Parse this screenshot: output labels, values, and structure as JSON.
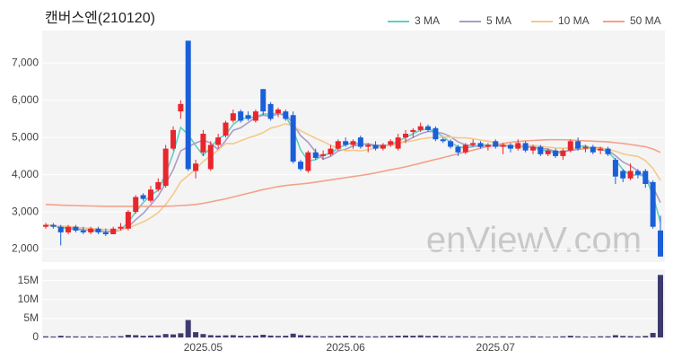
{
  "chart_data": [
    {
      "type": "candlestick",
      "title": "캔버스엔(210120)",
      "watermark": "enViewV.com",
      "up_color": "#e8262d",
      "down_color": "#1a5fd8",
      "open": [
        2600,
        2650,
        2600,
        2450,
        2600,
        2500,
        2450,
        2550,
        2450,
        2400,
        2550,
        2550,
        3000,
        3450,
        3300,
        3600,
        3700,
        4700,
        5700,
        7600,
        4100,
        4600,
        4150,
        4800,
        5050,
        5450,
        5700,
        5600,
        5450,
        6300,
        5900,
        5650,
        5700,
        5600,
        4350,
        4100,
        4600,
        4500,
        4550,
        4700,
        4900,
        4800,
        5000,
        4750,
        4800,
        4700,
        4800,
        4700,
        5000,
        5150,
        5200,
        5300,
        5250,
        4950,
        4900,
        4750,
        4600,
        4800,
        4850,
        4750,
        4900,
        4750,
        4800,
        4700,
        4850,
        4650,
        4750,
        4550,
        4650,
        4500,
        4650,
        4900,
        4700,
        4750,
        4650,
        4700,
        4400,
        4100,
        3900,
        4100,
        4100,
        3800,
        2500
      ],
      "high": [
        2700,
        2700,
        2650,
        2650,
        2650,
        2600,
        2600,
        2600,
        2550,
        2600,
        2700,
        3050,
        3450,
        3500,
        3700,
        3900,
        4800,
        5300,
        6000,
        7600,
        4400,
        5200,
        4900,
        5100,
        5450,
        5750,
        5750,
        5700,
        5750,
        6300,
        5950,
        5800,
        5750,
        5700,
        4400,
        4650,
        4700,
        4650,
        4800,
        4950,
        5000,
        4950,
        5050,
        4850,
        4900,
        4850,
        4950,
        5100,
        5200,
        5250,
        5400,
        5350,
        5300,
        5000,
        4950,
        4800,
        4850,
        4950,
        4900,
        4850,
        4950,
        4850,
        4850,
        4950,
        4900,
        4800,
        4800,
        4700,
        4700,
        4700,
        4950,
        5000,
        4800,
        4800,
        4750,
        4750,
        4450,
        4150,
        4300,
        4150,
        4150,
        3850,
        2900
      ],
      "low": [
        2550,
        2550,
        2100,
        2400,
        2450,
        2400,
        2400,
        2400,
        2350,
        2400,
        2500,
        2500,
        2950,
        3300,
        3250,
        3550,
        3650,
        4650,
        5500,
        4100,
        3900,
        4500,
        4100,
        4700,
        5000,
        5400,
        5400,
        5450,
        5400,
        5600,
        5450,
        5550,
        5450,
        4300,
        4100,
        4050,
        4400,
        4400,
        4500,
        4650,
        4750,
        4700,
        4700,
        4600,
        4650,
        4650,
        4750,
        4650,
        4850,
        5000,
        5150,
        5150,
        4900,
        4850,
        4700,
        4500,
        4550,
        4750,
        4700,
        4650,
        4700,
        4550,
        4600,
        4650,
        4600,
        4550,
        4500,
        4500,
        4450,
        4400,
        4600,
        4650,
        4600,
        4550,
        4550,
        4500,
        3750,
        3800,
        3850,
        3900,
        3650,
        2550,
        1800
      ],
      "close": [
        2650,
        2600,
        2450,
        2600,
        2500,
        2450,
        2550,
        2450,
        2400,
        2550,
        2600,
        3000,
        3400,
        3350,
        3600,
        3800,
        4700,
        5200,
        5900,
        4150,
        4300,
        5100,
        4800,
        5000,
        5400,
        5650,
        5450,
        5500,
        5700,
        5700,
        5500,
        5750,
        5500,
        4350,
        4150,
        4600,
        4450,
        4550,
        4700,
        4900,
        4800,
        4900,
        4750,
        4800,
        4700,
        4800,
        4900,
        5000,
        5100,
        5200,
        5300,
        5200,
        4950,
        4900,
        4750,
        4600,
        4800,
        4850,
        4750,
        4800,
        4750,
        4800,
        4700,
        4850,
        4650,
        4750,
        4550,
        4650,
        4500,
        4650,
        4900,
        4700,
        4750,
        4600,
        4700,
        4550,
        3950,
        3900,
        4100,
        4000,
        3750,
        2600,
        1800
      ],
      "series": [
        {
          "name": "3 MA",
          "color": "#5fcfc5",
          "values": [
            2650,
            2630,
            2570,
            2550,
            2520,
            2520,
            2500,
            2480,
            2470,
            2470,
            2520,
            2720,
            3000,
            3250,
            3450,
            3580,
            4030,
            4570,
            5270,
            5080,
            4780,
            4520,
            4730,
            4970,
            5070,
            5350,
            5500,
            5530,
            5550,
            5630,
            5630,
            5650,
            5580,
            5200,
            4670,
            4370,
            4400,
            4530,
            4570,
            4720,
            4800,
            4870,
            4820,
            4820,
            4750,
            4770,
            4800,
            4900,
            5000,
            5100,
            5200,
            5230,
            5150,
            5020,
            4870,
            4750,
            4720,
            4750,
            4800,
            4800,
            4770,
            4780,
            4750,
            4780,
            4730,
            4750,
            4650,
            4650,
            4570,
            4600,
            4680,
            4750,
            4780,
            4680,
            4680,
            4620,
            4400,
            4130,
            3980,
            4000,
            3950,
            3450,
            2720
          ]
        },
        {
          "name": "5 MA",
          "color": "#a99cc8",
          "values": [
            2650,
            2640,
            2600,
            2580,
            2560,
            2520,
            2510,
            2510,
            2470,
            2480,
            2510,
            2600,
            2790,
            2960,
            3190,
            3430,
            3770,
            4130,
            4640,
            4750,
            4850,
            4930,
            4850,
            4670,
            4920,
            5190,
            5260,
            5400,
            5540,
            5600,
            5570,
            5630,
            5630,
            5360,
            5050,
            4870,
            4610,
            4420,
            4490,
            4640,
            4680,
            4770,
            4810,
            4830,
            4790,
            4790,
            4790,
            4840,
            4900,
            5000,
            5100,
            5160,
            5150,
            5110,
            5020,
            4880,
            4800,
            4780,
            4750,
            4760,
            4790,
            4790,
            4760,
            4780,
            4750,
            4750,
            4700,
            4690,
            4620,
            4620,
            4650,
            4680,
            4700,
            4720,
            4730,
            4660,
            4510,
            4340,
            4240,
            4100,
            3940,
            3670,
            3250
          ]
        },
        {
          "name": "10 MA",
          "color": "#f5c98a",
          "values": [
            2650,
            2640,
            2620,
            2610,
            2590,
            2570,
            2560,
            2540,
            2530,
            2520,
            2520,
            2560,
            2650,
            2730,
            2840,
            2980,
            3200,
            3470,
            3810,
            3980,
            4150,
            4360,
            4500,
            4660,
            4840,
            4830,
            4910,
            4990,
            5050,
            5130,
            5250,
            5300,
            5370,
            5300,
            5180,
            5080,
            4980,
            4890,
            4790,
            4710,
            4640,
            4660,
            4640,
            4670,
            4720,
            4750,
            4790,
            4840,
            4880,
            4910,
            4960,
            4990,
            5000,
            5010,
            5010,
            4990,
            4990,
            4970,
            4930,
            4900,
            4850,
            4810,
            4790,
            4780,
            4780,
            4790,
            4760,
            4740,
            4720,
            4710,
            4720,
            4710,
            4710,
            4690,
            4700,
            4680,
            4630,
            4560,
            4520,
            4490,
            4380,
            4170,
            3850
          ]
        },
        {
          "name": "50 MA",
          "color": "#f4a18a",
          "values": [
            3200,
            3190,
            3180,
            3175,
            3170,
            3165,
            3160,
            3155,
            3150,
            3150,
            3150,
            3150,
            3150,
            3150,
            3150,
            3150,
            3155,
            3160,
            3170,
            3180,
            3200,
            3230,
            3270,
            3310,
            3350,
            3400,
            3450,
            3500,
            3550,
            3600,
            3640,
            3680,
            3710,
            3730,
            3750,
            3770,
            3800,
            3830,
            3860,
            3890,
            3920,
            3950,
            3980,
            4010,
            4050,
            4090,
            4130,
            4170,
            4210,
            4260,
            4310,
            4360,
            4410,
            4460,
            4510,
            4560,
            4610,
            4660,
            4710,
            4760,
            4800,
            4840,
            4870,
            4890,
            4910,
            4920,
            4930,
            4940,
            4940,
            4940,
            4930,
            4920,
            4910,
            4900,
            4890,
            4880,
            4860,
            4840,
            4810,
            4780,
            4750,
            4690,
            4600
          ]
        }
      ],
      "ylim": [
        1700,
        7850
      ],
      "yticks": [
        {
          "value": 2000,
          "label": "2,000"
        },
        {
          "value": 3000,
          "label": "3,000"
        },
        {
          "value": 4000,
          "label": "4,000"
        },
        {
          "value": 5000,
          "label": "5,000"
        },
        {
          "value": 6000,
          "label": "6,000"
        },
        {
          "value": 7000,
          "label": "7,000"
        }
      ],
      "grid": true
    },
    {
      "type": "bar",
      "color": "#3d3b6e",
      "categories": [
        null,
        null,
        null,
        null,
        null,
        null,
        null,
        null,
        null,
        null,
        null,
        null,
        null,
        null,
        null,
        null,
        null,
        null,
        null,
        null,
        null,
        "2025.05",
        null,
        null,
        null,
        null,
        null,
        null,
        null,
        null,
        null,
        null,
        null,
        null,
        null,
        null,
        null,
        null,
        null,
        null,
        "2025.06",
        null,
        null,
        null,
        null,
        null,
        null,
        null,
        null,
        null,
        null,
        null,
        null,
        null,
        null,
        null,
        null,
        null,
        null,
        null,
        "2025.07",
        null,
        null,
        null,
        null,
        null,
        null,
        null,
        null,
        null,
        null,
        null,
        null,
        null,
        null,
        null,
        null,
        null,
        null,
        null,
        null,
        null,
        null
      ],
      "values": [
        300000,
        250000,
        450000,
        300000,
        280000,
        250000,
        300000,
        220000,
        250000,
        300000,
        350000,
        700000,
        600000,
        450000,
        500000,
        550000,
        900000,
        800000,
        1100000,
        4600000,
        1400000,
        900000,
        600000,
        500000,
        550000,
        600000,
        450000,
        400000,
        500000,
        700000,
        500000,
        400000,
        450000,
        1000000,
        600000,
        500000,
        350000,
        300000,
        350000,
        400000,
        450000,
        400000,
        350000,
        300000,
        300000,
        350000,
        400000,
        450000,
        500000,
        450000,
        550000,
        400000,
        450000,
        350000,
        300000,
        350000,
        300000,
        300000,
        250000,
        300000,
        250000,
        300000,
        250000,
        300000,
        250000,
        300000,
        250000,
        200000,
        250000,
        300000,
        450000,
        300000,
        250000,
        250000,
        300000,
        300000,
        600000,
        400000,
        350000,
        300000,
        400000,
        1200000,
        16500000
      ],
      "ylim": [
        0,
        18000000
      ],
      "yticks": [
        0,
        {
          "value": 5000000,
          "label": "5M"
        },
        {
          "value": 10000000,
          "label": "10M"
        },
        {
          "value": 15000000,
          "label": "15M"
        }
      ],
      "grid": true
    }
  ]
}
